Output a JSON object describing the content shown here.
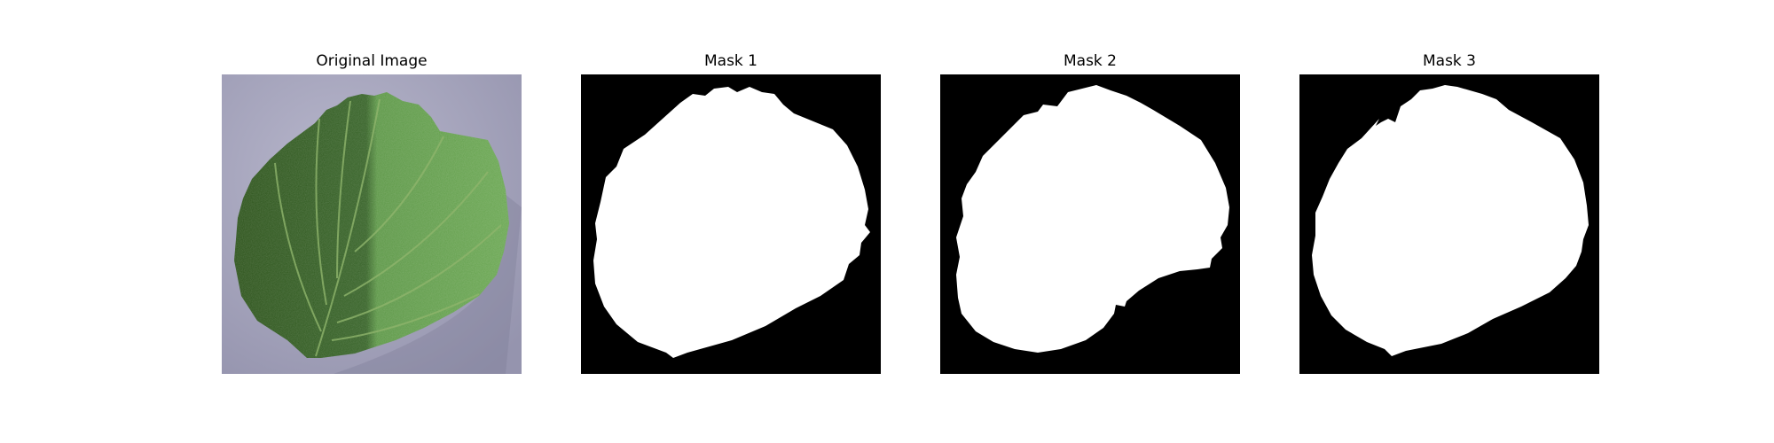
{
  "panels": [
    {
      "title": "Original Image"
    },
    {
      "title": "Mask 1"
    },
    {
      "title": "Mask 2"
    },
    {
      "title": "Mask 3"
    }
  ],
  "colors": {
    "background": "#a9a8c0",
    "leaf_dark": "#2f5a1f",
    "leaf_light": "#5e9a45",
    "mask_bg": "#000000",
    "mask_fg": "#ffffff"
  }
}
